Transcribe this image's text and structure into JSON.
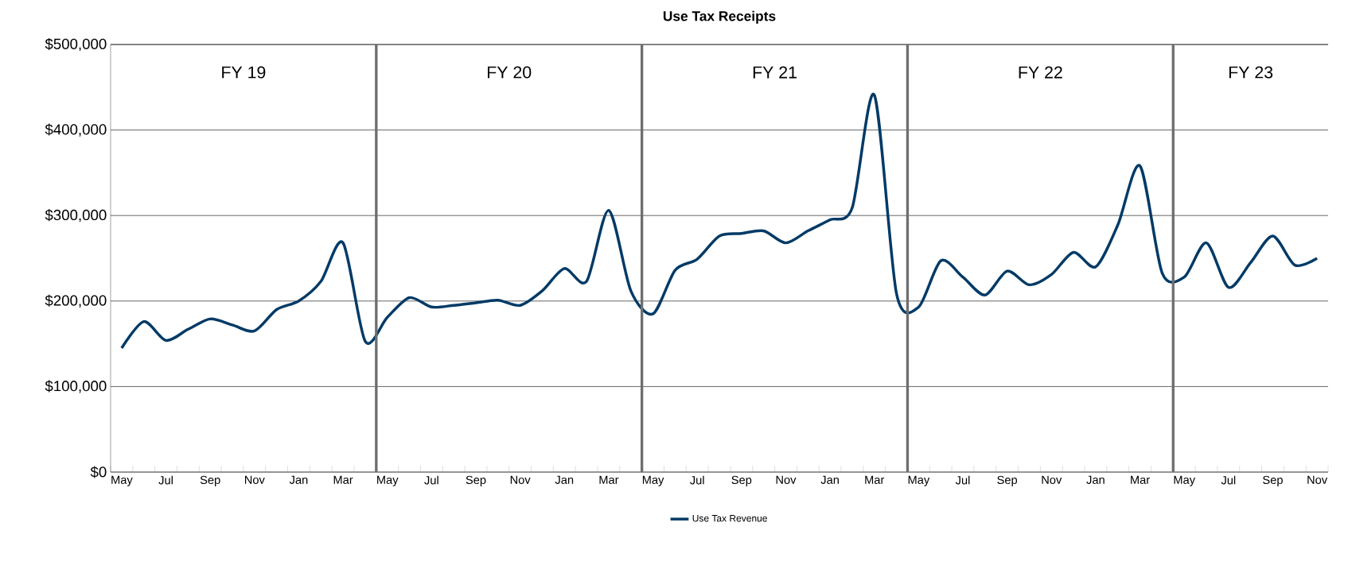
{
  "chart_data": {
    "type": "line",
    "title": "Use Tax Receipts",
    "categories": [
      "May",
      null,
      "Jul",
      null,
      "Sep",
      null,
      "Nov",
      null,
      "Jan",
      null,
      "Mar",
      null,
      "May",
      null,
      "Jul",
      null,
      "Sep",
      null,
      "Nov",
      null,
      "Jan",
      null,
      "Mar",
      null,
      "May",
      null,
      "Jul",
      null,
      "Sep",
      null,
      "Nov",
      null,
      "Jan",
      null,
      "Mar",
      null,
      "May",
      null,
      "Jul",
      null,
      "Sep",
      null,
      "Nov",
      null,
      "Jan",
      null,
      "Mar",
      null,
      "May",
      null,
      "Jul",
      null,
      "Sep",
      null,
      "Nov"
    ],
    "series": [
      {
        "name": "Use Tax Revenue",
        "color": "#003a66",
        "values": [
          145000,
          176000,
          154000,
          167000,
          179000,
          172000,
          165000,
          190000,
          200000,
          223000,
          268000,
          153000,
          181000,
          204000,
          193000,
          195000,
          198000,
          201000,
          195000,
          212000,
          238000,
          223000,
          306000,
          212000,
          185000,
          236000,
          249000,
          276000,
          279000,
          282000,
          268000,
          282000,
          295000,
          309000,
          441000,
          209000,
          193000,
          247000,
          228000,
          207000,
          235000,
          219000,
          231000,
          257000,
          240000,
          289000,
          358000,
          233000,
          228000,
          268000,
          216000,
          245000,
          276000,
          242000,
          250000
        ]
      }
    ],
    "ylim": [
      0,
      500000
    ],
    "yticks": [
      {
        "value": 0,
        "label": "$0"
      },
      {
        "value": 100000,
        "label": "$100,000"
      },
      {
        "value": 200000,
        "label": "$200,000"
      },
      {
        "value": 300000,
        "label": "$300,000"
      },
      {
        "value": 400000,
        "label": "$400,000"
      },
      {
        "value": 500000,
        "label": "$500,000"
      }
    ],
    "grid": "y",
    "legend": "bottom",
    "marker": "none",
    "line_style": "solid",
    "annotations": [
      "FY 19",
      "FY 20",
      "FY 21",
      "FY 22",
      "FY 23"
    ]
  }
}
